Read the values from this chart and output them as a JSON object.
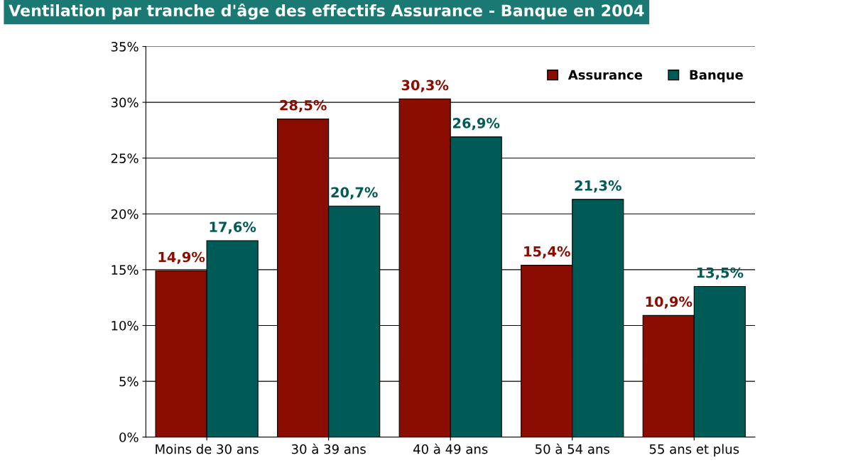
{
  "chart_data": {
    "type": "bar",
    "title": "Ventilation par tranche d'âge des effectifs Assurance - Banque en 2004",
    "categories": [
      "Moins de 30 ans",
      "30 à 39 ans",
      "40 à 49 ans",
      "50 à 54 ans",
      "55 ans et plus"
    ],
    "series": [
      {
        "name": "Assurance",
        "color": "#8b0d02",
        "values": [
          14.9,
          28.5,
          30.3,
          15.4,
          10.9
        ],
        "value_labels": [
          "14,9%",
          "28,5%",
          "30,3%",
          "15,4%",
          "10,9%"
        ]
      },
      {
        "name": "Banque",
        "color": "#005a55",
        "values": [
          17.6,
          20.7,
          26.9,
          21.3,
          13.5
        ],
        "value_labels": [
          "17,6%",
          "20,7%",
          "26,9%",
          "21,3%",
          "13,5%"
        ]
      }
    ],
    "ylim": [
      0,
      35
    ],
    "yticks": [
      {
        "value": 0,
        "label": "0%"
      },
      {
        "value": 5,
        "label": "5%"
      },
      {
        "value": 10,
        "label": "10%"
      },
      {
        "value": 15,
        "label": "15%"
      },
      {
        "value": 20,
        "label": "20%"
      },
      {
        "value": 25,
        "label": "25%"
      },
      {
        "value": 30,
        "label": "30%"
      },
      {
        "value": 35,
        "label": "35%"
      }
    ],
    "grid": "y",
    "legend": "top right"
  }
}
